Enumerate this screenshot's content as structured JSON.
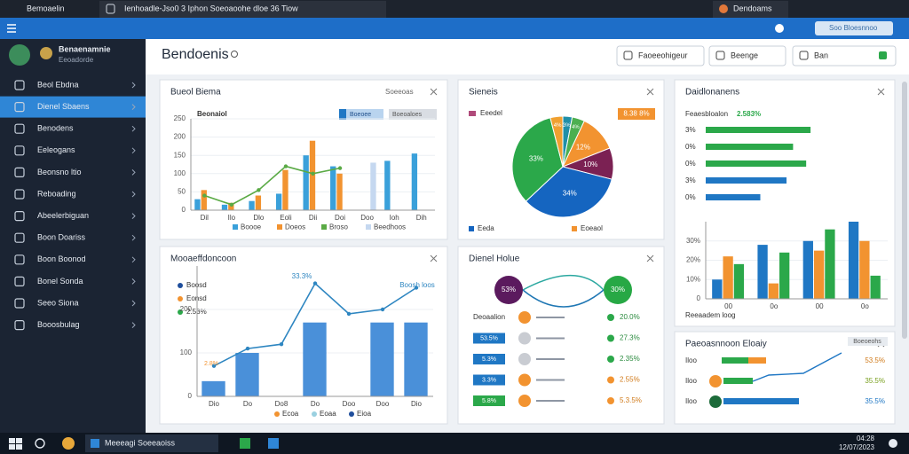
{
  "browser": {
    "tabs": [
      "Bemoaelin",
      "Ienhoadle-Jso0 3 Iphon Soeoaoohe dloe 36 Tiow",
      "Dendoams"
    ],
    "search": "Soo Bloesnnoo"
  },
  "sidebar": {
    "user": "Benaenamnie",
    "role": "Eeoadorde",
    "active": 1,
    "items": [
      "Beol Ebdna",
      "Dienel Sbaens",
      "Benodens",
      "Eeleogans",
      "Beonsno ltio",
      "Reboading",
      "Abeelerbiguan",
      "Boon Doariss",
      "Boon Boonod",
      "Bonel Sonda",
      "Seeo Siona",
      "Booosbulag"
    ]
  },
  "header": {
    "title": "Bendoenis",
    "buttons": [
      "Faoeeohigeur",
      "Beenge",
      "Ban"
    ]
  },
  "panels": {
    "sales": {
      "title": "Bueol Biema",
      "action": "Soeeoas",
      "subtitle": "Beonaiol",
      "chips": [
        "Boeoee",
        "Boeoaloes"
      ],
      "categories": [
        "Dil",
        "Ilo",
        "Dlo",
        "Eoli",
        "Dii",
        "Doi",
        "Doo",
        "Ioh",
        "Dih"
      ],
      "ylim": [
        0,
        250
      ],
      "yticks": [
        0,
        50,
        100,
        150,
        200,
        250
      ],
      "series": [
        {
          "name": "Boooe",
          "type": "bar",
          "color": "#3aa0da",
          "values": [
            30,
            15,
            25,
            45,
            150,
            120,
            null,
            135,
            155
          ]
        },
        {
          "name": "Doeos",
          "type": "bar",
          "color": "#f29330",
          "values": [
            55,
            20,
            40,
            110,
            190,
            100,
            null,
            null,
            null
          ]
        },
        {
          "name": "Broso",
          "type": "line",
          "color": "#5aaa45",
          "values": [
            40,
            15,
            55,
            120,
            100,
            115,
            null,
            null,
            null
          ]
        },
        {
          "name": "Beedhoos",
          "type": "bar",
          "color": "#c5d8f0",
          "values": [
            null,
            null,
            null,
            null,
            null,
            null,
            130,
            null,
            null
          ]
        }
      ]
    },
    "share": {
      "title": "Sieneis",
      "legend": "Eeedel",
      "badge": "8.38 8%",
      "footer": [
        "Eeda",
        "Eoeaol"
      ],
      "values": [
        3,
        4,
        12,
        10,
        34,
        33,
        4
      ],
      "colors": [
        "#1f8fa8",
        "#4caf50",
        "#f29330",
        "#7b2153",
        "#1565c0",
        "#2ba84a",
        "#f0a030"
      ],
      "value_labels": [
        "3%",
        "4%",
        "12%",
        "10%",
        "34%",
        "33%",
        "4%"
      ]
    },
    "details": {
      "title": "Daidlonanens",
      "subtitle": "Feaesbloalon",
      "badge": "2.583%",
      "footer": "Reeaadem loog",
      "xlim": [
        0,
        100
      ],
      "rows": [
        {
          "label": "3%",
          "value": 96,
          "color": "#2ba84a"
        },
        {
          "label": "0%",
          "value": 80,
          "color": "#2ba84a"
        },
        {
          "label": "0%",
          "value": 92,
          "color": "#2ba84a"
        },
        {
          "label": "3%",
          "value": 74,
          "color": "#1f77c4"
        },
        {
          "label": "0%",
          "value": 50,
          "color": "#1f77c4"
        }
      ],
      "categories": [
        "00",
        "0o",
        "00",
        "0o"
      ],
      "ylim": [
        0,
        40
      ],
      "yticks": [
        0,
        {
          "value": 10,
          "label": "10%"
        },
        {
          "value": 20,
          "label": "20%"
        },
        {
          "value": 30,
          "label": "30%"
        }
      ],
      "series": [
        {
          "type": "bar",
          "color": "#1f77c4",
          "values": [
            10,
            28,
            30,
            40
          ]
        },
        {
          "type": "bar",
          "color": "#f29330",
          "values": [
            22,
            8,
            25,
            30
          ]
        },
        {
          "type": "bar",
          "color": "#2ba84a",
          "values": [
            18,
            24,
            36,
            12
          ]
        }
      ]
    },
    "perf": {
      "title": "Mooaeffdoncoon",
      "legend": [
        "Boosd",
        "Eonsd",
        "2.53%"
      ],
      "legend_colors": [
        "#1f4e9c",
        "#f29330",
        "#2ba84a"
      ],
      "annotations": [
        "33.3%",
        "Boosh loos",
        "2.8%"
      ],
      "footer": [
        "Ecoa",
        "Eoaa",
        "Eioa"
      ],
      "categories": [
        "Dio",
        "Do",
        "Do8",
        "Do",
        "Doo",
        "Doo",
        "Dio"
      ],
      "ylim": [
        0,
        300
      ],
      "yticks": [
        0,
        100,
        200
      ],
      "series": [
        {
          "type": "bar",
          "color": "#4a90d9",
          "values": [
            35,
            100,
            null,
            170,
            null,
            170,
            170
          ]
        },
        {
          "type": "line",
          "color": "#2e86c1",
          "values": [
            70,
            110,
            120,
            260,
            190,
            200,
            250
          ]
        }
      ]
    },
    "health": {
      "title": "Dienel Holue",
      "nodes": [
        "53%",
        "30%"
      ],
      "rows": [
        {
          "label": "Deoaalion",
          "value": "20.0%"
        },
        {
          "label": "53.5%",
          "value": "27.3%"
        },
        {
          "label": "5.3%",
          "value": "2.35%"
        },
        {
          "label": "3.3%",
          "value": "2.55%"
        },
        {
          "label": "5.8%",
          "value": "5.3.5%"
        }
      ]
    },
    "flow": {
      "title": "Paeoasnnoon Eloaiy",
      "chip": "Boeoeohs",
      "rows": [
        {
          "label": "Iloo",
          "value": "53.5%"
        },
        {
          "label": "Iloo",
          "value": "35.5%"
        },
        {
          "label": "Iloo",
          "value": "35.5%"
        }
      ]
    }
  },
  "taskbar": {
    "app": "Meeeagi Soeeaoiss",
    "time": "04:28",
    "date": "12/07/2023"
  }
}
